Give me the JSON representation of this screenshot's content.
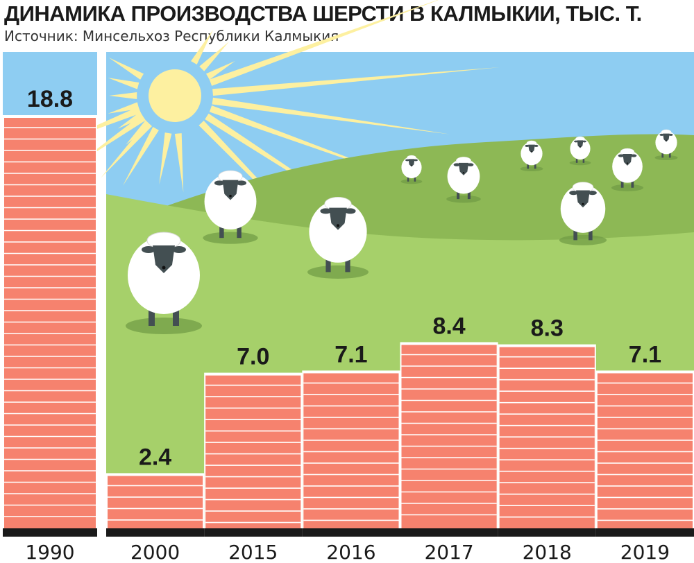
{
  "title": "ДИНАМИКА ПРОИЗВОДСТВА ШЕРСТИ В КАЛМЫКИИ, ТЫС. Т.",
  "subtitle": "Источник: Минсельхоз Республики Калмыкия",
  "colors": {
    "bar": "#f6826e",
    "bar_stripe": "#ffffff",
    "sky": "#8ecdf2",
    "hill_far": "#8db855",
    "hill_near": "#a6d06a",
    "sun": "#fdf0a0",
    "axis_band": "#1a1a1a",
    "sheep_body": "#ffffff",
    "sheep_face": "#434f52"
  },
  "chart_data": {
    "type": "bar",
    "title": "ДИНАМИКА ПРОИЗВОДСТВА ШЕРСТИ В КАЛМЫКИИ, ТЫС. Т.",
    "subtitle": "Источник: Минсельхоз Республики Калмыкия",
    "categories": [
      "1990",
      "2000",
      "2015",
      "2016",
      "2017",
      "2018",
      "2019"
    ],
    "values": [
      18.8,
      2.4,
      7.0,
      7.1,
      8.4,
      8.3,
      7.1
    ],
    "labels": [
      "18.8",
      "2.4",
      "7.0",
      "7.1",
      "8.4",
      "8.3",
      "7.1"
    ],
    "xlabel": "",
    "ylabel": "",
    "ylim": [
      0,
      18.8
    ],
    "grid": false,
    "legend": "none"
  }
}
